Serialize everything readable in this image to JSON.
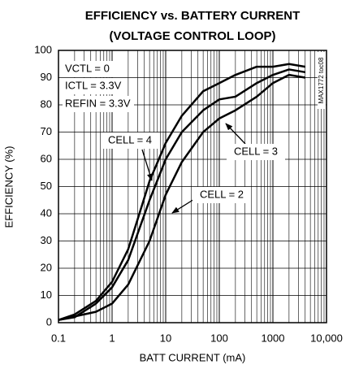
{
  "chart_data": {
    "type": "line",
    "title": "EFFICIENCY vs. BATTERY CURRENT",
    "subtitle": "(VOLTAGE CONTROL LOOP)",
    "x_label": "BATT CURRENT (mA)",
    "y_label": "EFFICIENCY (%)",
    "log_x": true,
    "grid": true,
    "xlim": [
      0.1,
      10000
    ],
    "ylim": [
      0,
      100
    ],
    "xticks": [
      0.1,
      1,
      10,
      100,
      1000,
      {
        "value": 10000,
        "label": "10,000"
      }
    ],
    "yticks": [
      0,
      10,
      20,
      30,
      40,
      50,
      60,
      70,
      80,
      90,
      100
    ],
    "annotations": [
      "VCTL = 0",
      "ICTL = 3.3V",
      "REFIN = 3.3V",
      "MAX1772 toc08"
    ],
    "series": [
      {
        "name": "CELL = 4",
        "color": "#000000",
        "x": [
          0.1,
          0.2,
          0.5,
          1,
          2,
          3,
          5,
          10,
          20,
          50,
          100,
          200,
          500,
          1000,
          2000,
          4000
        ],
        "values": [
          1,
          3,
          8,
          15,
          27,
          38,
          52,
          66,
          76,
          85,
          88,
          91,
          94,
          94,
          95,
          94
        ]
      },
      {
        "name": "CELL = 3",
        "color": "#000000",
        "x": [
          0.1,
          0.2,
          0.5,
          1,
          2,
          5,
          10,
          20,
          50,
          100,
          200,
          500,
          1000,
          2000,
          4000
        ],
        "values": [
          1,
          2,
          7,
          13,
          23,
          45,
          60,
          70,
          78,
          82,
          83,
          88,
          91,
          93,
          92
        ]
      },
      {
        "name": "CELL = 2",
        "color": "#000000",
        "x": [
          0.1,
          0.5,
          1,
          2,
          5,
          10,
          20,
          50,
          100,
          200,
          500,
          1000,
          2000,
          4000
        ],
        "values": [
          1,
          4,
          7,
          14,
          30,
          47,
          59,
          70,
          75,
          78,
          83,
          88,
          91,
          90
        ]
      }
    ]
  }
}
